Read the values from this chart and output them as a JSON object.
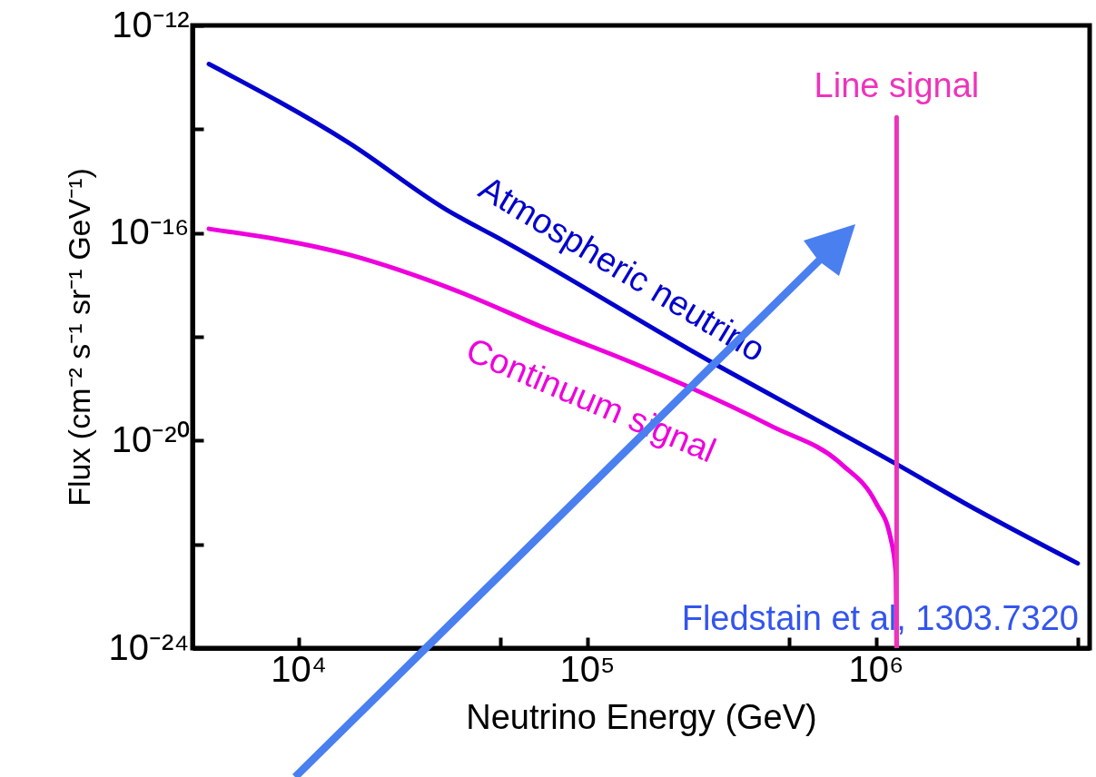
{
  "chart_data": {
    "type": "line",
    "xlabel": "Neutrino Energy (GeV)",
    "ylabel": "Flux (cm⁻² s⁻¹ sr⁻¹ GeV⁻¹)",
    "log": "xy",
    "xlim": [
      4300,
      5500000
    ],
    "xticks": [
      {
        "value": 10000,
        "label": "10⁴"
      },
      {
        "value": 50000,
        "label": null
      },
      {
        "value": 100000,
        "label": "10⁵"
      },
      {
        "value": 500000,
        "label": null
      },
      {
        "value": 1000000,
        "label": "10⁶"
      },
      {
        "value": 5000000,
        "label": null
      }
    ],
    "ylim": [
      1e-24,
      1e-12
    ],
    "yticks": [
      {
        "value": 1e-24,
        "label": "10⁻²⁴"
      },
      {
        "value": 1e-22,
        "label": null
      },
      {
        "value": 1e-20,
        "label": "10⁻²⁰"
      },
      {
        "value": 1e-18,
        "label": null
      },
      {
        "value": 1e-16,
        "label": "10⁻¹⁶"
      },
      {
        "value": 1e-14,
        "label": null
      },
      {
        "value": 1e-12,
        "label": "10⁻¹²"
      }
    ],
    "series": [
      {
        "name": "Atmospheric neutrino",
        "color": "#0000cc",
        "x": [
          4900,
          15000,
          32600,
          51000,
          286000,
          500000,
          1180000,
          2020000,
          5000000
        ],
        "values": [
          1.8e-13,
          5.4e-15,
          2.8e-16,
          7.2e-17,
          2.7e-19,
          4.9e-20,
          3.5e-21,
          6.3e-22,
          4.3e-23
        ]
      },
      {
        "name": "Continuum signal",
        "color": "#ee00dd",
        "x": [
          4900,
          15000,
          34500,
          72800,
          142600,
          434500,
          760000,
          1000000,
          1122000,
          1172000,
          1180000
        ],
        "values": [
          1.2e-16,
          3.8e-17,
          8.1e-18,
          1.4e-18,
          3.2e-19,
          1.9e-20,
          3.5e-21,
          6.3e-22,
          1.4e-22,
          2.9e-23,
          1e-24
        ]
      },
      {
        "name": "Line signal",
        "color": "#ee33bb",
        "x": [
          1180000,
          1180000
        ],
        "values": [
          1.7e-14,
          1e-24
        ]
      }
    ],
    "annotations": [
      "Fledstain et al, 1303.7320"
    ]
  }
}
